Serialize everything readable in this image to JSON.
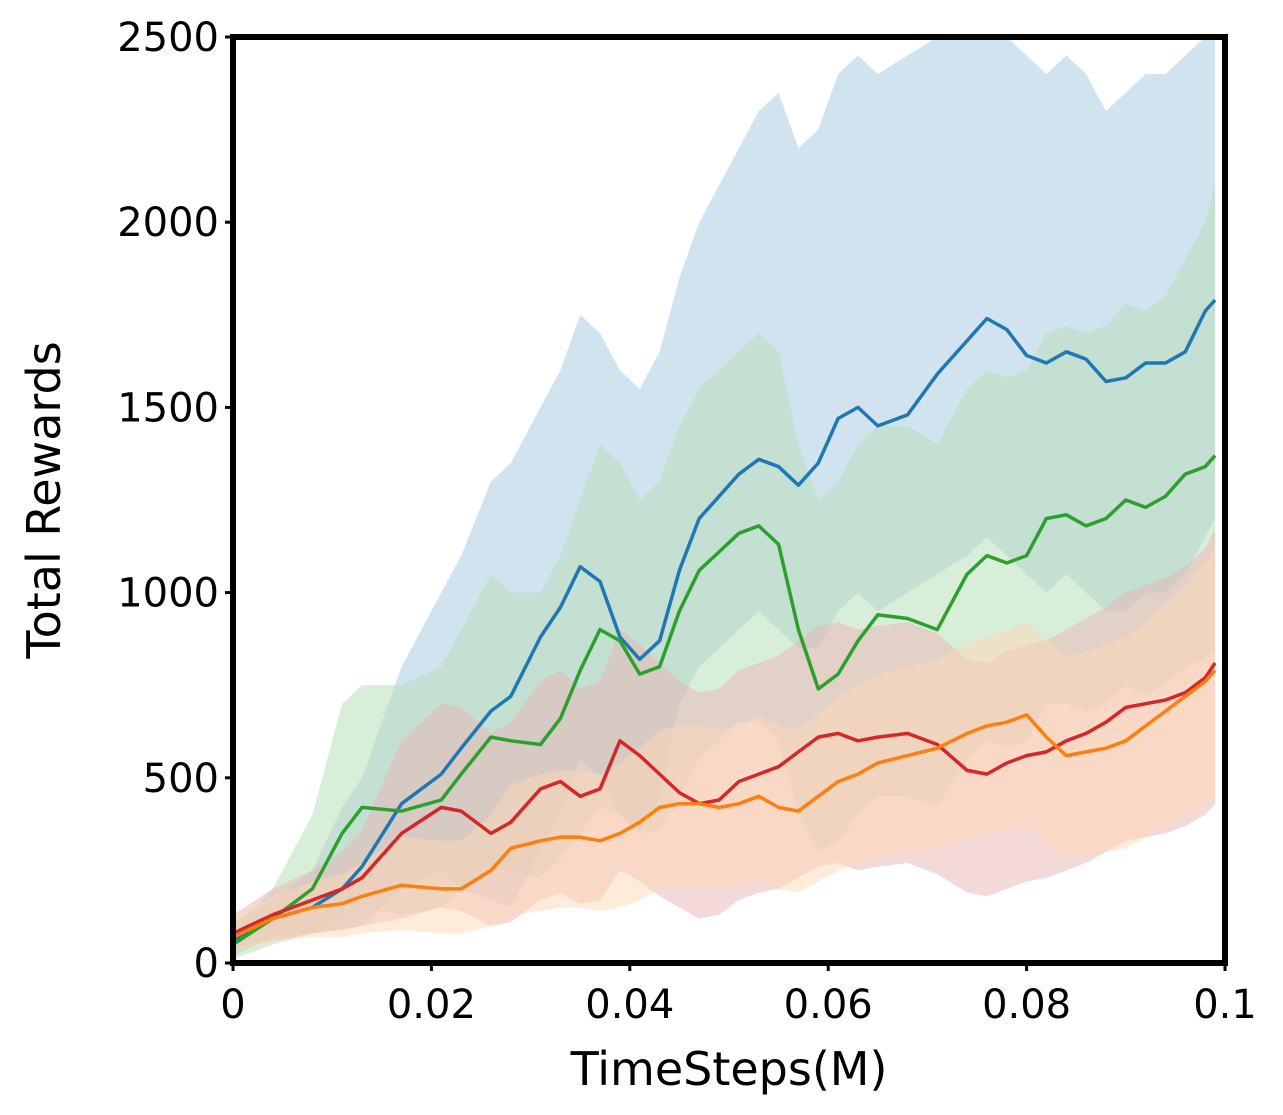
{
  "chart_data": {
    "type": "line",
    "xlabel": "TimeSteps(M)",
    "ylabel": "Total Rewards",
    "xlim": [
      0,
      0.1
    ],
    "ylim": [
      0,
      2500
    ],
    "x_ticks": [
      {
        "value": 0,
        "label": "0"
      },
      {
        "value": 0.02,
        "label": "0.02"
      },
      {
        "value": 0.04,
        "label": "0.04"
      },
      {
        "value": 0.06,
        "label": "0.06"
      },
      {
        "value": 0.08,
        "label": "0.08"
      },
      {
        "value": 0.1,
        "label": "0.1"
      }
    ],
    "y_ticks": [
      {
        "value": 0,
        "label": "0"
      },
      {
        "value": 500,
        "label": "500"
      },
      {
        "value": 1000,
        "label": "1000"
      },
      {
        "value": 1500,
        "label": "1500"
      },
      {
        "value": 2000,
        "label": "2000"
      },
      {
        "value": 2500,
        "label": "2500"
      }
    ],
    "grid": false,
    "legend": "none",
    "x": [
      0,
      0.004,
      0.008,
      0.011,
      0.013,
      0.017,
      0.021,
      0.023,
      0.026,
      0.028,
      0.031,
      0.033,
      0.035,
      0.037,
      0.039,
      0.041,
      0.043,
      0.045,
      0.047,
      0.049,
      0.051,
      0.053,
      0.055,
      0.057,
      0.059,
      0.061,
      0.063,
      0.065,
      0.068,
      0.071,
      0.074,
      0.076,
      0.078,
      0.08,
      0.082,
      0.084,
      0.086,
      0.088,
      0.09,
      0.092,
      0.094,
      0.096,
      0.098,
      0.099
    ],
    "series": [
      {
        "color": "#1f77b4",
        "band_color": "#a6c8e1",
        "values": [
          60,
          120,
          150,
          200,
          260,
          430,
          510,
          580,
          680,
          720,
          880,
          960,
          1070,
          1030,
          880,
          820,
          870,
          1060,
          1200,
          1260,
          1320,
          1360,
          1340,
          1290,
          1350,
          1470,
          1500,
          1450,
          1480,
          1590,
          1680,
          1740,
          1710,
          1640,
          1620,
          1650,
          1630,
          1570,
          1580,
          1620,
          1620,
          1650,
          1760,
          1790
        ],
        "lower": [
          20,
          70,
          80,
          90,
          100,
          200,
          250,
          200,
          170,
          150,
          300,
          400,
          550,
          500,
          400,
          350,
          450,
          700,
          800,
          850,
          900,
          950,
          900,
          850,
          850,
          950,
          1000,
          950,
          1000,
          1050,
          1100,
          1150,
          1100,
          1050,
          1000,
          1050,
          1000,
          950,
          950,
          1000,
          1000,
          1050,
          1150,
          1200
        ],
        "upper": [
          110,
          170,
          250,
          420,
          500,
          800,
          1000,
          1100,
          1300,
          1350,
          1500,
          1600,
          1750,
          1700,
          1600,
          1550,
          1650,
          1850,
          2000,
          2100,
          2200,
          2300,
          2350,
          2200,
          2250,
          2400,
          2450,
          2400,
          2450,
          2500,
          2500,
          2500,
          2500,
          2450,
          2400,
          2450,
          2400,
          2300,
          2350,
          2400,
          2400,
          2450,
          2500,
          2500
        ]
      },
      {
        "color": "#2ca02c",
        "band_color": "#b4deb4",
        "values": [
          50,
          120,
          200,
          350,
          420,
          410,
          440,
          510,
          610,
          600,
          590,
          660,
          790,
          900,
          870,
          780,
          800,
          950,
          1060,
          1110,
          1160,
          1180,
          1130,
          900,
          740,
          780,
          870,
          940,
          930,
          900,
          1050,
          1100,
          1080,
          1100,
          1200,
          1210,
          1180,
          1200,
          1250,
          1230,
          1260,
          1320,
          1340,
          1370
        ],
        "lower": [
          10,
          50,
          80,
          120,
          150,
          130,
          150,
          200,
          250,
          250,
          230,
          280,
          350,
          420,
          400,
          350,
          360,
          450,
          550,
          600,
          650,
          650,
          600,
          400,
          300,
          330,
          400,
          450,
          450,
          420,
          550,
          600,
          580,
          600,
          700,
          700,
          680,
          700,
          750,
          720,
          750,
          800,
          820,
          850
        ],
        "upper": [
          90,
          200,
          400,
          700,
          750,
          750,
          800,
          900,
          1050,
          1000,
          1000,
          1100,
          1250,
          1400,
          1350,
          1250,
          1300,
          1450,
          1550,
          1600,
          1650,
          1700,
          1650,
          1400,
          1250,
          1300,
          1400,
          1450,
          1450,
          1400,
          1550,
          1600,
          1580,
          1600,
          1700,
          1720,
          1700,
          1720,
          1780,
          1760,
          1800,
          1900,
          2000,
          2100
        ]
      },
      {
        "color": "#d62728",
        "band_color": "#eab3b3",
        "values": [
          80,
          130,
          170,
          200,
          230,
          350,
          420,
          410,
          350,
          380,
          470,
          490,
          450,
          470,
          600,
          560,
          510,
          460,
          430,
          440,
          490,
          510,
          530,
          570,
          610,
          620,
          600,
          610,
          620,
          590,
          520,
          510,
          540,
          560,
          570,
          600,
          620,
          650,
          690,
          700,
          710,
          730,
          770,
          810
        ],
        "lower": [
          40,
          60,
          80,
          90,
          100,
          120,
          150,
          140,
          100,
          110,
          170,
          190,
          160,
          170,
          250,
          220,
          180,
          150,
          120,
          130,
          170,
          190,
          200,
          230,
          260,
          270,
          250,
          260,
          270,
          240,
          190,
          180,
          200,
          220,
          230,
          250,
          270,
          300,
          330,
          340,
          350,
          370,
          400,
          430
        ],
        "upper": [
          130,
          200,
          250,
          300,
          360,
          600,
          700,
          690,
          620,
          650,
          760,
          790,
          740,
          760,
          900,
          860,
          810,
          760,
          730,
          740,
          790,
          810,
          830,
          870,
          910,
          920,
          900,
          910,
          920,
          890,
          820,
          810,
          840,
          860,
          870,
          900,
          930,
          960,
          1000,
          1020,
          1040,
          1070,
          1120,
          1170
        ]
      },
      {
        "color": "#ff7f0e",
        "band_color": "#ffd8b3",
        "values": [
          70,
          120,
          150,
          160,
          180,
          210,
          200,
          200,
          250,
          310,
          330,
          340,
          340,
          330,
          350,
          380,
          420,
          430,
          430,
          420,
          430,
          450,
          420,
          410,
          450,
          490,
          510,
          540,
          560,
          580,
          620,
          640,
          650,
          670,
          610,
          560,
          570,
          580,
          600,
          640,
          680,
          720,
          760,
          790
        ],
        "lower": [
          30,
          60,
          70,
          70,
          80,
          90,
          80,
          80,
          100,
          130,
          140,
          150,
          150,
          140,
          150,
          170,
          200,
          210,
          210,
          200,
          210,
          230,
          200,
          190,
          220,
          250,
          270,
          290,
          300,
          310,
          340,
          350,
          360,
          370,
          320,
          280,
          290,
          300,
          310,
          340,
          370,
          400,
          430,
          450
        ],
        "upper": [
          120,
          180,
          220,
          240,
          270,
          340,
          330,
          330,
          400,
          480,
          510,
          520,
          520,
          510,
          540,
          580,
          630,
          640,
          640,
          630,
          640,
          670,
          640,
          630,
          670,
          720,
          750,
          780,
          800,
          820,
          860,
          880,
          900,
          920,
          870,
          830,
          840,
          860,
          880,
          920,
          970,
          1020,
          1080,
          1120
        ]
      }
    ]
  }
}
